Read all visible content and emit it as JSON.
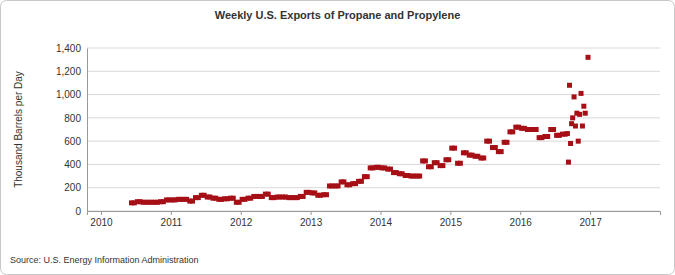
{
  "chart_data": {
    "type": "scatter",
    "title": "Weekly U.S. Exports of Propane and Propylene",
    "y_label": "Thousand Barrels per Day",
    "source": "Source: U.S. Energy Information Administration",
    "color": "#a50f15",
    "marker": "square",
    "grid": true,
    "xlim": [
      2009.8,
      2018
    ],
    "xticks": [
      2010,
      2011,
      2012,
      2013,
      2014,
      2015,
      2016,
      2017
    ],
    "ylim": [
      0,
      1400
    ],
    "yticks": [
      0,
      200,
      400,
      600,
      800,
      {
        "value": 1000,
        "label": "1,000"
      },
      {
        "value": 1200,
        "label": "1,200"
      },
      {
        "value": 1400,
        "label": "1,400"
      }
    ],
    "x": [
      2010.437,
      2010.477,
      2010.52,
      2010.56,
      2010.603,
      2010.643,
      2010.687,
      2010.727,
      2010.77,
      2010.81,
      2010.853,
      2010.893,
      2010.937,
      2010.977,
      2011.02,
      2011.06,
      2011.103,
      2011.143,
      2011.187,
      2011.227,
      2011.27,
      2011.31,
      2011.353,
      2011.393,
      2011.437,
      2011.477,
      2011.52,
      2011.56,
      2011.603,
      2011.643,
      2011.687,
      2011.727,
      2011.77,
      2011.81,
      2011.853,
      2011.893,
      2011.937,
      2011.977,
      2012.02,
      2012.06,
      2012.103,
      2012.143,
      2012.187,
      2012.227,
      2012.27,
      2012.31,
      2012.353,
      2012.393,
      2012.437,
      2012.477,
      2012.52,
      2012.56,
      2012.603,
      2012.643,
      2012.687,
      2012.727,
      2012.77,
      2012.81,
      2012.853,
      2012.893,
      2012.937,
      2012.977,
      2013.02,
      2013.06,
      2013.103,
      2013.143,
      2013.187,
      2013.227,
      2013.27,
      2013.31,
      2013.353,
      2013.393,
      2013.437,
      2013.477,
      2013.52,
      2013.56,
      2013.603,
      2013.643,
      2013.687,
      2013.727,
      2013.77,
      2013.81,
      2013.853,
      2013.893,
      2013.937,
      2013.977,
      2014.02,
      2014.06,
      2014.103,
      2014.143,
      2014.187,
      2014.227,
      2014.27,
      2014.31,
      2014.353,
      2014.393,
      2014.437,
      2014.477,
      2014.52,
      2014.56,
      2014.603,
      2014.643,
      2014.687,
      2014.727,
      2014.77,
      2014.81,
      2014.853,
      2014.893,
      2014.937,
      2014.977,
      2015.02,
      2015.06,
      2015.103,
      2015.143,
      2015.187,
      2015.227,
      2015.27,
      2015.31,
      2015.353,
      2015.393,
      2015.437,
      2015.477,
      2015.52,
      2015.56,
      2015.603,
      2015.643,
      2015.687,
      2015.727,
      2015.77,
      2015.81,
      2015.853,
      2015.893,
      2015.937,
      2015.977,
      2016.02,
      2016.06,
      2016.103,
      2016.143,
      2016.187,
      2016.227,
      2016.27,
      2016.31,
      2016.353,
      2016.393,
      2016.437,
      2016.477,
      2016.52,
      2016.56,
      2016.603,
      2016.643,
      2016.675,
      2016.69,
      2016.705,
      2016.72,
      2016.735,
      2016.75,
      2016.77,
      2016.79,
      2016.81,
      2016.83,
      2016.85,
      2016.87,
      2016.89,
      2016.91,
      2016.93,
      2016.97
    ],
    "values": [
      70,
      70,
      80,
      80,
      75,
      75,
      75,
      75,
      75,
      75,
      80,
      80,
      95,
      95,
      95,
      95,
      100,
      100,
      100,
      100,
      85,
      85,
      115,
      115,
      135,
      135,
      120,
      120,
      110,
      110,
      100,
      100,
      105,
      105,
      110,
      110,
      75,
      75,
      100,
      100,
      110,
      110,
      125,
      125,
      125,
      125,
      145,
      145,
      115,
      115,
      120,
      120,
      120,
      120,
      115,
      115,
      115,
      115,
      125,
      125,
      160,
      160,
      155,
      155,
      135,
      135,
      140,
      140,
      215,
      215,
      215,
      215,
      250,
      250,
      225,
      225,
      235,
      235,
      255,
      255,
      295,
      295,
      370,
      370,
      375,
      375,
      370,
      370,
      360,
      360,
      330,
      330,
      320,
      320,
      305,
      305,
      300,
      300,
      300,
      300,
      430,
      430,
      380,
      380,
      415,
      415,
      390,
      390,
      440,
      440,
      540,
      540,
      410,
      410,
      500,
      500,
      480,
      480,
      470,
      470,
      455,
      455,
      600,
      600,
      545,
      545,
      510,
      510,
      590,
      590,
      680,
      680,
      720,
      720,
      710,
      710,
      700,
      700,
      700,
      700,
      630,
      630,
      640,
      640,
      700,
      700,
      650,
      650,
      660,
      660,
      665,
      420,
      1080,
      580,
      750,
      800,
      980,
      730,
      840,
      600,
      830,
      1010,
      730,
      900,
      840,
      1320
    ]
  }
}
